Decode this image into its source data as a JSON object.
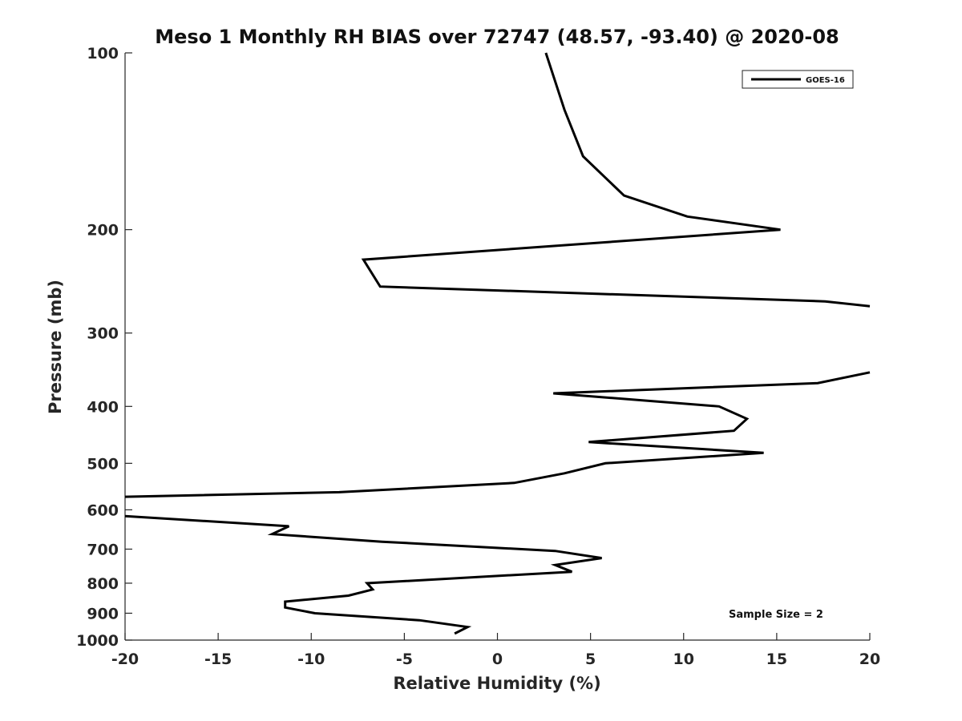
{
  "chart_data": {
    "type": "line",
    "title": "Meso 1 Monthly RH BIAS over 72747 (48.57, -93.40) @ 2020-08",
    "xlabel": "Relative Humidity (%)",
    "ylabel": "Pressure (mb)",
    "xlim": [
      -20,
      20
    ],
    "ylim": [
      100,
      1000
    ],
    "y_scale": "log",
    "y_reversed": true,
    "x_ticks": [
      -20,
      -15,
      -10,
      -5,
      0,
      5,
      10,
      15,
      20
    ],
    "x_tick_labels": [
      "-20",
      "-15",
      "-10",
      "-5",
      "0",
      "5",
      "10",
      "15",
      "20"
    ],
    "y_ticks": [
      100,
      200,
      300,
      400,
      500,
      600,
      700,
      800,
      900,
      1000
    ],
    "y_tick_labels": [
      "100",
      "200",
      "300",
      "400",
      "500",
      "600",
      "700",
      "800",
      "900",
      "1000"
    ],
    "grid": false,
    "legend_position": "top-right",
    "annotation": "Sample Size = 2",
    "series": [
      {
        "name": "GOES-16",
        "color": "#000000",
        "segments": [
          [
            {
              "x": 2.6,
              "y": 100
            },
            {
              "x": 3.6,
              "y": 125
            },
            {
              "x": 4.6,
              "y": 150
            },
            {
              "x": 6.8,
              "y": 175
            },
            {
              "x": 10.2,
              "y": 190
            },
            {
              "x": 15.2,
              "y": 200
            },
            {
              "x": -7.2,
              "y": 225
            },
            {
              "x": -6.3,
              "y": 250
            },
            {
              "x": 17.6,
              "y": 265
            },
            {
              "x": 20.0,
              "y": 270
            }
          ],
          [
            {
              "x": 20.0,
              "y": 350
            },
            {
              "x": 17.2,
              "y": 365
            },
            {
              "x": 3.0,
              "y": 380
            },
            {
              "x": 11.9,
              "y": 400
            },
            {
              "x": 13.4,
              "y": 420
            },
            {
              "x": 12.7,
              "y": 440
            },
            {
              "x": 4.9,
              "y": 460
            },
            {
              "x": 14.3,
              "y": 480
            },
            {
              "x": 5.8,
              "y": 500
            },
            {
              "x": 3.6,
              "y": 520
            },
            {
              "x": 0.9,
              "y": 540
            },
            {
              "x": -8.5,
              "y": 560
            },
            {
              "x": -20.0,
              "y": 570
            }
          ],
          [
            {
              "x": -20.0,
              "y": 615
            },
            {
              "x": -11.2,
              "y": 640
            },
            {
              "x": -12.1,
              "y": 660
            },
            {
              "x": -6.2,
              "y": 680
            },
            {
              "x": 3.1,
              "y": 705
            },
            {
              "x": 5.6,
              "y": 725
            },
            {
              "x": 3.1,
              "y": 745
            },
            {
              "x": 4.0,
              "y": 765
            },
            {
              "x": -7.0,
              "y": 800
            },
            {
              "x": -6.7,
              "y": 820
            },
            {
              "x": -8.0,
              "y": 840
            },
            {
              "x": -11.4,
              "y": 860
            },
            {
              "x": -11.4,
              "y": 880
            },
            {
              "x": -9.8,
              "y": 900
            },
            {
              "x": -4.2,
              "y": 925
            },
            {
              "x": -1.6,
              "y": 950
            },
            {
              "x": -2.3,
              "y": 975
            }
          ]
        ]
      }
    ]
  }
}
